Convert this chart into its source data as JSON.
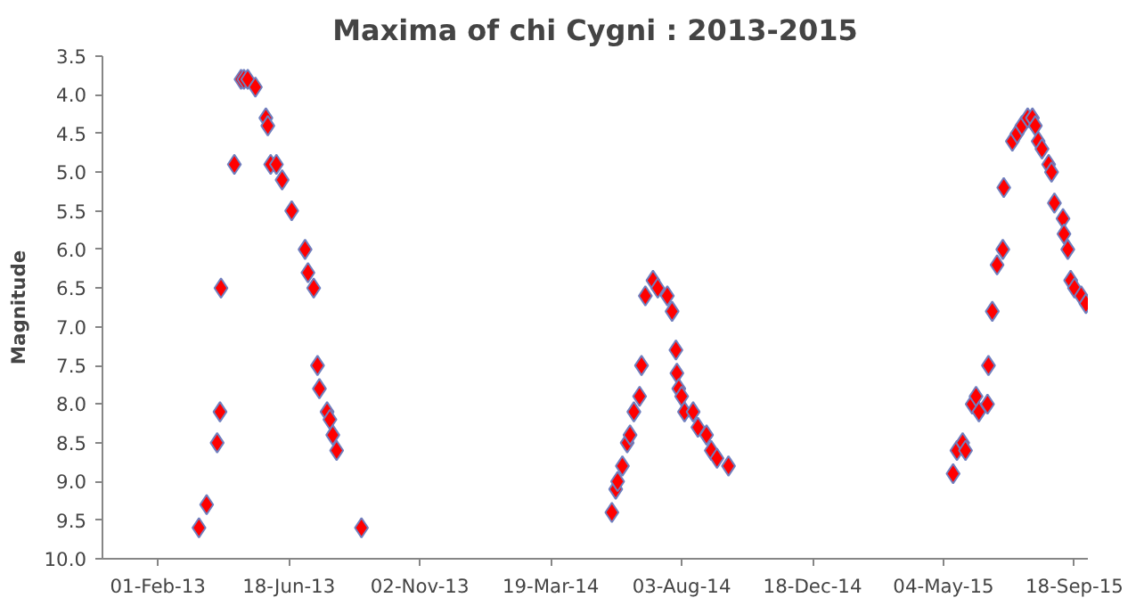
{
  "chart_data": {
    "type": "scatter",
    "title": "Maxima of chi Cygni : 2013-2015",
    "ylabel": "Magnitude",
    "marker": "diamond",
    "grid": false,
    "xlim": [
      "2012-12-05",
      "2015-10-02"
    ],
    "xticks": [
      {
        "value": "2013-02-01",
        "label": "01-Feb-13"
      },
      {
        "value": "2013-06-18",
        "label": "18-Jun-13"
      },
      {
        "value": "2013-11-02",
        "label": "02-Nov-13"
      },
      {
        "value": "2014-03-19",
        "label": "19-Mar-14"
      },
      {
        "value": "2014-08-03",
        "label": "03-Aug-14"
      },
      {
        "value": "2014-12-18",
        "label": "18-Dec-14"
      },
      {
        "value": "2015-05-04",
        "label": "04-May-15"
      },
      {
        "value": "2015-09-18",
        "label": "18-Sep-15"
      }
    ],
    "ylim": [
      10.0,
      3.5
    ],
    "yticks": [
      {
        "value": 3.5,
        "label": "3.5"
      },
      {
        "value": 4.0,
        "label": "4.0"
      },
      {
        "value": 4.5,
        "label": "4.5"
      },
      {
        "value": 5.0,
        "label": "5.0"
      },
      {
        "value": 5.5,
        "label": "5.5"
      },
      {
        "value": 6.0,
        "label": "6.0"
      },
      {
        "value": 6.5,
        "label": "6.5"
      },
      {
        "value": 7.0,
        "label": "7.0"
      },
      {
        "value": 7.5,
        "label": "7.5"
      },
      {
        "value": 8.0,
        "label": "8.0"
      },
      {
        "value": 8.5,
        "label": "8.5"
      },
      {
        "value": 9.0,
        "label": "9.0"
      },
      {
        "value": 9.5,
        "label": "9.5"
      },
      {
        "value": 10.0,
        "label": "10.0"
      }
    ],
    "series": [
      {
        "color": "#ff0000",
        "x": [
          "2013-03-16",
          "2013-03-24",
          "2013-04-04",
          "2013-04-07",
          "2013-04-08",
          "2013-04-22",
          "2013-04-29",
          "2013-05-02",
          "2013-05-06",
          "2013-05-14",
          "2013-05-25",
          "2013-05-27",
          "2013-05-30",
          "2013-06-05",
          "2013-06-11",
          "2013-06-21",
          "2013-07-05",
          "2013-07-08",
          "2013-07-14",
          "2013-07-18",
          "2013-07-20",
          "2013-07-28",
          "2013-07-31",
          "2013-08-03",
          "2013-08-07",
          "2013-09-02",
          "2014-05-22",
          "2014-05-26",
          "2014-05-28",
          "2014-06-02",
          "2014-06-07",
          "2014-06-10",
          "2014-06-14",
          "2014-06-20",
          "2014-06-22",
          "2014-06-26",
          "2014-07-04",
          "2014-07-09",
          "2014-07-19",
          "2014-07-24",
          "2014-07-28",
          "2014-07-29",
          "2014-07-31",
          "2014-08-03",
          "2014-08-06",
          "2014-08-15",
          "2014-08-20",
          "2014-08-29",
          "2014-09-03",
          "2014-09-09",
          "2014-09-21",
          "2015-05-14",
          "2015-05-18",
          "2015-05-24",
          "2015-05-27",
          "2015-06-03",
          "2015-06-07",
          "2015-06-10",
          "2015-06-19",
          "2015-06-20",
          "2015-06-24",
          "2015-06-29",
          "2015-07-05",
          "2015-07-06",
          "2015-07-15",
          "2015-07-20",
          "2015-07-25",
          "2015-07-31",
          "2015-08-05",
          "2015-08-08",
          "2015-08-11",
          "2015-08-15",
          "2015-08-22",
          "2015-08-25",
          "2015-08-28",
          "2015-09-06",
          "2015-09-07",
          "2015-09-11",
          "2015-09-14",
          "2015-09-18",
          "2015-09-25",
          "2015-09-30"
        ],
        "values": [
          9.6,
          9.3,
          8.5,
          8.1,
          6.5,
          4.9,
          3.8,
          3.8,
          3.8,
          3.9,
          4.3,
          4.4,
          4.9,
          4.9,
          5.1,
          5.5,
          6.0,
          6.3,
          6.5,
          7.5,
          7.8,
          8.1,
          8.2,
          8.4,
          8.6,
          9.6,
          9.4,
          9.1,
          9.0,
          8.8,
          8.5,
          8.4,
          8.1,
          7.9,
          7.5,
          6.6,
          6.4,
          6.5,
          6.6,
          6.8,
          7.3,
          7.6,
          7.8,
          7.9,
          8.1,
          8.1,
          8.3,
          8.4,
          8.6,
          8.7,
          8.8,
          8.9,
          8.6,
          8.5,
          8.6,
          8.0,
          7.9,
          8.1,
          8.0,
          7.5,
          6.8,
          6.2,
          6.0,
          5.2,
          4.6,
          4.5,
          4.4,
          4.3,
          4.3,
          4.4,
          4.6,
          4.7,
          4.9,
          5.0,
          5.4,
          5.6,
          5.8,
          6.0,
          6.4,
          6.5,
          6.6,
          6.7
        ]
      }
    ]
  }
}
